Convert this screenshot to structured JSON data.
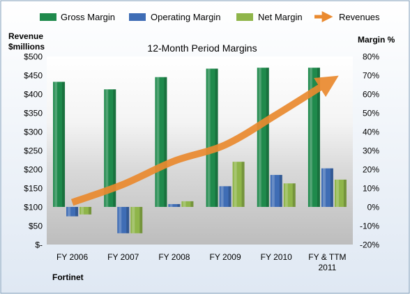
{
  "chart_data": {
    "type": "bar",
    "title": "12-Month Period Margins",
    "company": "Fortinet",
    "left_axis": {
      "label_lines": [
        "Revenue",
        "$millions"
      ],
      "ylim": [
        0,
        500
      ],
      "tick_labels": [
        "$-",
        "$50",
        "$100",
        "$150",
        "$200",
        "$250",
        "$300",
        "$350",
        "$400",
        "$450",
        "$500"
      ]
    },
    "right_axis": {
      "label": "Margin %",
      "ylim": [
        -20,
        80
      ],
      "tick_labels": [
        "-20%",
        "-10%",
        "0%",
        "10%",
        "20%",
        "30%",
        "40%",
        "50%",
        "60%",
        "70%",
        "80%"
      ]
    },
    "categories": [
      {
        "line1": "FY 2006",
        "line2": ""
      },
      {
        "line1": "FY 2007",
        "line2": ""
      },
      {
        "line1": "FY 2008",
        "line2": ""
      },
      {
        "line1": "FY 2009",
        "line2": ""
      },
      {
        "line1": "FY 2010",
        "line2": ""
      },
      {
        "line1": "FY & TTM",
        "line2": "2011"
      }
    ],
    "series": [
      {
        "name": "Gross Margin",
        "axis": "right",
        "kind": "bar",
        "color": "#1f8a4c",
        "values": [
          66.5,
          62.5,
          69,
          73.5,
          74,
          74
        ]
      },
      {
        "name": "Operating Margin",
        "axis": "right",
        "kind": "bar",
        "color": "#3f6db5",
        "values": [
          -5,
          -14,
          1.5,
          11,
          17,
          20.5
        ]
      },
      {
        "name": "Net Margin",
        "axis": "right",
        "kind": "bar",
        "color": "#8fb54a",
        "values": [
          -4,
          -14,
          3,
          24,
          12.5,
          14.5
        ]
      },
      {
        "name": "Revenues",
        "axis": "left",
        "kind": "line",
        "color": "#ea8a2f",
        "values": [
          112,
          160,
          222,
          265,
          345,
          430
        ]
      }
    ],
    "grid": false,
    "legend_position": "top"
  }
}
